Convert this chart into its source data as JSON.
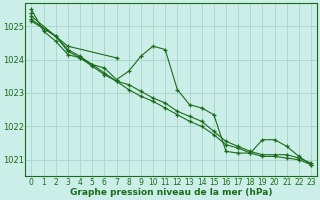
{
  "title": "Graphe pression niveau de la mer (hPa)",
  "bg_color": "#cceee8",
  "grid_color": "#aad8d0",
  "line_color": "#1a6b1a",
  "xlim": [
    -0.5,
    23.5
  ],
  "ylim": [
    1020.5,
    1025.7
  ],
  "yticks": [
    1021,
    1022,
    1023,
    1024,
    1025
  ],
  "xticks": [
    0,
    1,
    2,
    3,
    4,
    5,
    6,
    7,
    8,
    9,
    10,
    11,
    12,
    13,
    14,
    15,
    16,
    17,
    18,
    19,
    20,
    21,
    22,
    23
  ],
  "series": [
    [
      1025.5,
      1024.85,
      1024.55,
      1024.15,
      1024.05,
      1023.85,
      1023.75,
      1023.4,
      1023.65,
      1024.1,
      1024.4,
      1024.3,
      1023.1,
      1022.65,
      1022.55,
      1022.35,
      1021.25,
      1021.2,
      1021.2,
      1021.6,
      1021.6,
      1021.4,
      1021.1,
      1020.85
    ],
    [
      1025.3,
      null,
      null,
      1024.4,
      null,
      null,
      null,
      1024.05,
      null,
      null,
      null,
      null,
      null,
      null,
      null,
      null,
      null,
      null,
      null,
      null,
      null,
      null,
      null,
      null
    ],
    [
      1025.15,
      null,
      1024.7,
      1024.25,
      1024.05,
      1023.8,
      1023.55,
      1023.35,
      1023.25,
      1023.05,
      1022.85,
      1022.7,
      1022.45,
      1022.3,
      1022.15,
      1021.85,
      1021.55,
      1021.4,
      1021.25,
      1021.15,
      1021.15,
      1021.15,
      1021.05,
      1020.9
    ],
    [
      1025.2,
      null,
      1024.7,
      1024.3,
      1024.1,
      1023.85,
      1023.6,
      1023.35,
      1023.1,
      1022.9,
      1022.75,
      1022.55,
      1022.35,
      1022.15,
      1022.0,
      1021.75,
      1021.45,
      1021.35,
      1021.2,
      1021.1,
      1021.1,
      1021.05,
      1021.0,
      1020.85
    ],
    [
      1025.4,
      null,
      null,
      null,
      null,
      null,
      null,
      null,
      null,
      null,
      null,
      null,
      null,
      null,
      null,
      null,
      null,
      null,
      null,
      null,
      null,
      null,
      null,
      null
    ]
  ],
  "xlabel_fontsize": 6.5,
  "ytick_fontsize": 6,
  "xtick_fontsize": 5.5
}
